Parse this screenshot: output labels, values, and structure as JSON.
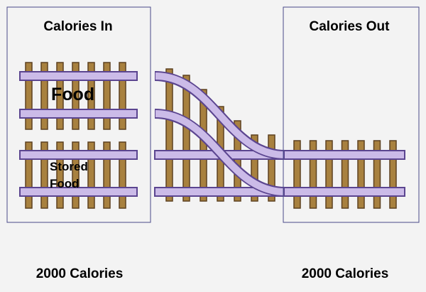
{
  "calories_in": {
    "title": "Calories In",
    "tracks": [
      {
        "label": "Food"
      },
      {
        "label": "Stored Food"
      }
    ],
    "total": "2000 Calories"
  },
  "calories_out": {
    "title": "Calories Out",
    "total": "2000 Calories"
  }
}
